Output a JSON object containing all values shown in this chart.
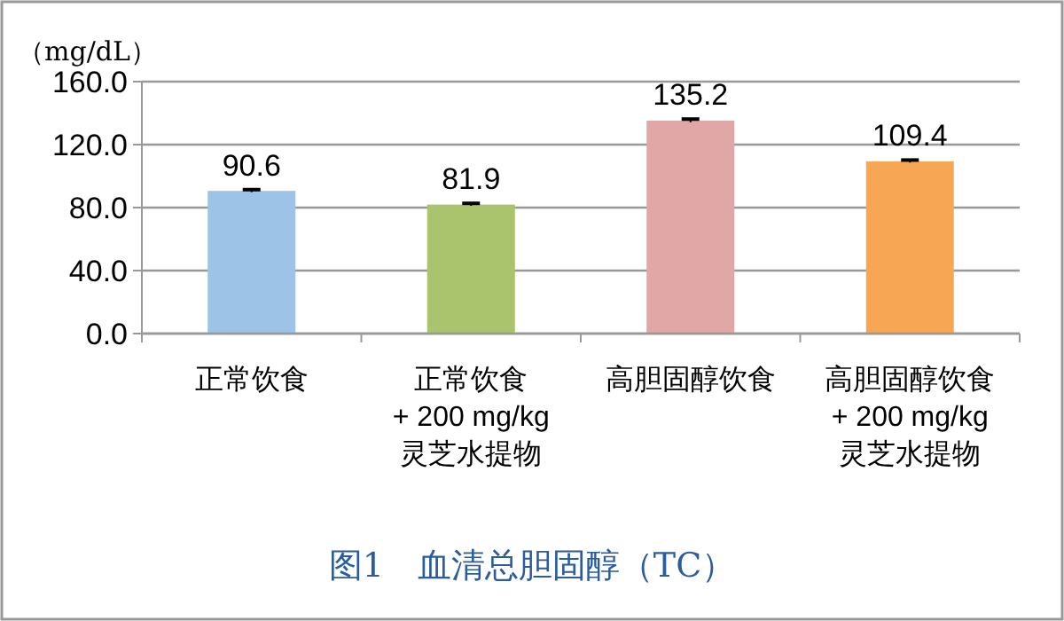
{
  "chart_data": {
    "type": "bar",
    "title": "图1　血清总胆固醇（TC）",
    "ylabel": "（mg/dL）",
    "categories": [
      "正常饮食",
      "正常饮食\n+ 200 mg/kg\n灵芝水提物",
      "高胆固醇饮食",
      "高胆固醇饮食\n+ 200 mg/kg\n灵芝水提物"
    ],
    "values": [
      90.6,
      81.9,
      135.2,
      109.4
    ],
    "colors": [
      "#9dc3e6",
      "#a9c46c",
      "#e0a7a6",
      "#f7a653"
    ],
    "errors": [
      0.8,
      0.8,
      1,
      0.8
    ],
    "ylim": [
      0,
      160
    ],
    "yticks": [
      {
        "value": 0,
        "label": "0.0"
      },
      {
        "value": 40,
        "label": "40.0"
      },
      {
        "value": 80,
        "label": "80.0"
      },
      {
        "value": 120,
        "label": "120.0"
      },
      {
        "value": 160,
        "label": "160.0"
      }
    ],
    "grid": "y",
    "data_labels": true
  }
}
